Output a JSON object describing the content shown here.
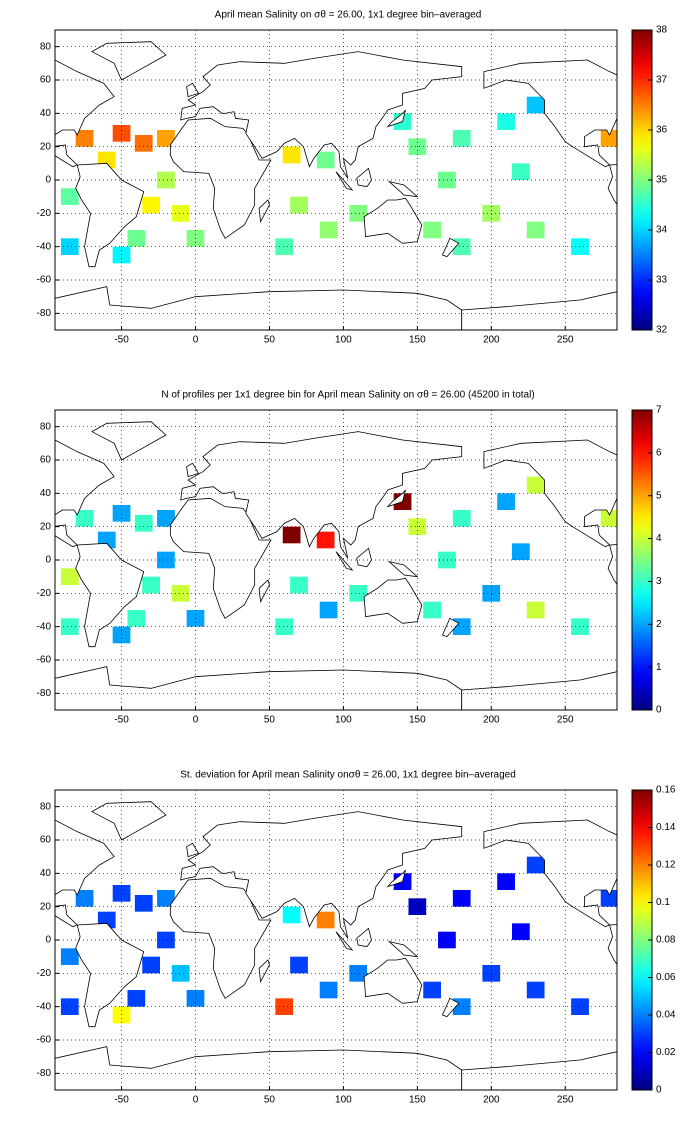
{
  "chart_data": [
    {
      "type": "heatmap",
      "title": "April mean Salinity on σθ = 26.00, 1x1 degree bin–averaged",
      "colormap": "jet",
      "xlim": [
        -95,
        285
      ],
      "ylim": [
        -90,
        90
      ],
      "xticks": [
        -50,
        0,
        50,
        100,
        150,
        200,
        250
      ],
      "yticks": [
        -80,
        -60,
        -40,
        -20,
        0,
        20,
        40,
        60,
        80
      ],
      "grid": true,
      "clim": [
        32,
        38
      ],
      "cticks": [
        32,
        33,
        34,
        35,
        36,
        37,
        38
      ],
      "x": [
        -75,
        -50,
        -35,
        -20,
        -60,
        -30,
        -10,
        0,
        -40,
        -50,
        -20,
        -85,
        -85,
        65,
        88,
        70,
        90,
        60,
        110,
        150,
        180,
        210,
        230,
        140,
        170,
        220,
        200,
        230,
        180,
        260,
        160,
        280
      ],
      "y": [
        25,
        28,
        22,
        25,
        12,
        -15,
        -20,
        -35,
        -35,
        -45,
        0,
        -10,
        -40,
        15,
        12,
        -15,
        -30,
        -40,
        -20,
        20,
        25,
        35,
        45,
        35,
        0,
        5,
        -20,
        -30,
        -40,
        -40,
        -30,
        25
      ],
      "values": [
        36.5,
        36.8,
        36.6,
        36.3,
        35.9,
        35.8,
        35.6,
        35.0,
        34.9,
        34.2,
        35.3,
        34.8,
        34.0,
        35.9,
        34.9,
        35.2,
        35.1,
        34.7,
        35.0,
        34.9,
        34.7,
        34.4,
        33.9,
        34.5,
        34.9,
        34.6,
        35.2,
        35.0,
        34.7,
        34.3,
        35.0,
        36.3
      ]
    },
    {
      "type": "heatmap",
      "title": "N of profiles per 1x1 degree bin for April mean Salinity on σθ = 26.00 (45200 in total)",
      "colormap": "jet",
      "xlim": [
        -95,
        285
      ],
      "ylim": [
        -90,
        90
      ],
      "xticks": [
        -50,
        0,
        50,
        100,
        150,
        200,
        250
      ],
      "yticks": [
        -80,
        -60,
        -40,
        -20,
        0,
        20,
        40,
        60,
        80
      ],
      "grid": true,
      "clim": [
        0,
        7
      ],
      "cticks": [
        0,
        1,
        2,
        3,
        4,
        5,
        6,
        7
      ],
      "x": [
        -75,
        -50,
        -35,
        -20,
        -60,
        -30,
        -10,
        0,
        -40,
        -50,
        -20,
        -85,
        -85,
        65,
        88,
        70,
        90,
        60,
        110,
        150,
        180,
        210,
        230,
        140,
        170,
        220,
        200,
        230,
        180,
        260,
        160,
        280
      ],
      "y": [
        25,
        28,
        22,
        25,
        12,
        -15,
        -20,
        -35,
        -35,
        -45,
        0,
        -10,
        -40,
        15,
        12,
        -15,
        -30,
        -40,
        -20,
        20,
        25,
        35,
        45,
        35,
        0,
        5,
        -20,
        -30,
        -40,
        -40,
        -30,
        25
      ],
      "values": [
        3,
        2,
        3,
        2,
        2,
        3,
        4,
        2,
        3,
        2,
        2,
        4,
        3,
        7,
        6,
        3,
        2,
        3,
        3,
        4,
        3,
        2,
        4,
        7,
        3,
        2,
        2,
        4,
        2,
        3,
        3,
        4
      ]
    },
    {
      "type": "heatmap",
      "title": "St. deviation for April mean Salinity onσθ = 26.00, 1x1 degree bin–averaged",
      "colormap": "jet",
      "xlim": [
        -95,
        285
      ],
      "ylim": [
        -90,
        90
      ],
      "xticks": [
        -50,
        0,
        50,
        100,
        150,
        200,
        250
      ],
      "yticks": [
        -80,
        -60,
        -40,
        -20,
        0,
        20,
        40,
        60,
        80
      ],
      "grid": true,
      "clim": [
        0,
        0.16
      ],
      "cticks": [
        0,
        0.02,
        0.04,
        0.06,
        0.08,
        0.1,
        0.12,
        0.14,
        0.16
      ],
      "x": [
        -75,
        -50,
        -35,
        -20,
        -60,
        -30,
        -10,
        0,
        -40,
        -50,
        -20,
        -85,
        -85,
        65,
        88,
        70,
        90,
        60,
        110,
        150,
        180,
        210,
        230,
        140,
        170,
        220,
        200,
        230,
        180,
        260,
        160,
        280
      ],
      "y": [
        25,
        28,
        22,
        25,
        12,
        -15,
        -20,
        -35,
        -35,
        -45,
        0,
        -10,
        -40,
        15,
        12,
        -15,
        -30,
        -40,
        -20,
        20,
        25,
        35,
        45,
        35,
        0,
        5,
        -20,
        -30,
        -40,
        -40,
        -30,
        25
      ],
      "values": [
        0.04,
        0.03,
        0.03,
        0.04,
        0.03,
        0.03,
        0.05,
        0.04,
        0.03,
        0.1,
        0.03,
        0.04,
        0.03,
        0.06,
        0.12,
        0.03,
        0.04,
        0.13,
        0.04,
        0.01,
        0.02,
        0.02,
        0.03,
        0.02,
        0.02,
        0.02,
        0.03,
        0.03,
        0.04,
        0.03,
        0.03,
        0.03
      ]
    }
  ]
}
